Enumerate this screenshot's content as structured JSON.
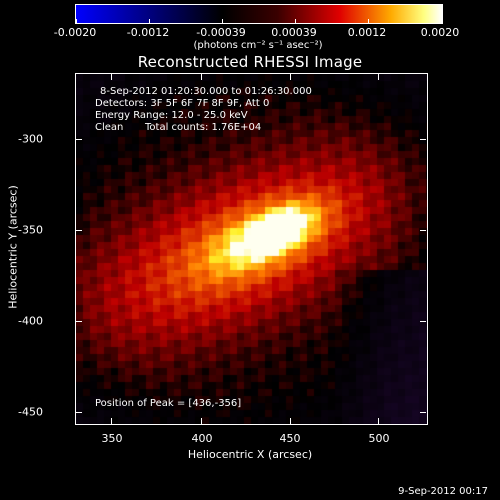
{
  "colorbar": {
    "labels": [
      "-0.0020",
      "-0.0012",
      "-0.00039",
      "0.00039",
      "0.0012",
      "0.0020"
    ],
    "units": "(photons cm⁻² s⁻¹ asec⁻²)",
    "colors": [
      "#0000ff",
      "#000000",
      "#ff0000",
      "#ffff00",
      "#ffffff"
    ]
  },
  "plot": {
    "title": "Reconstructed RHESSI Image",
    "info": {
      "time": "8-Sep-2012 01:20:30.000 to 01:26:30.000",
      "detectors": "Detectors: 3F 5F 6F 7F 8F 9F, Att 0",
      "energy": "Energy Range: 12.0 - 25.0 keV",
      "clean": "Clean",
      "counts": "Total counts: 1.76E+04"
    },
    "peak": "Position of Peak = [436,-356]",
    "x_axis": {
      "title": "Heliocentric X (arcsec)",
      "ticks": [
        "350",
        "400",
        "450",
        "500"
      ]
    },
    "y_axis": {
      "title": "Heliocentric Y (arcsec)",
      "ticks": [
        "-300",
        "-350",
        "-400",
        "-450"
      ]
    }
  },
  "footer": {
    "date": "9-Sep-2012 00:17"
  }
}
